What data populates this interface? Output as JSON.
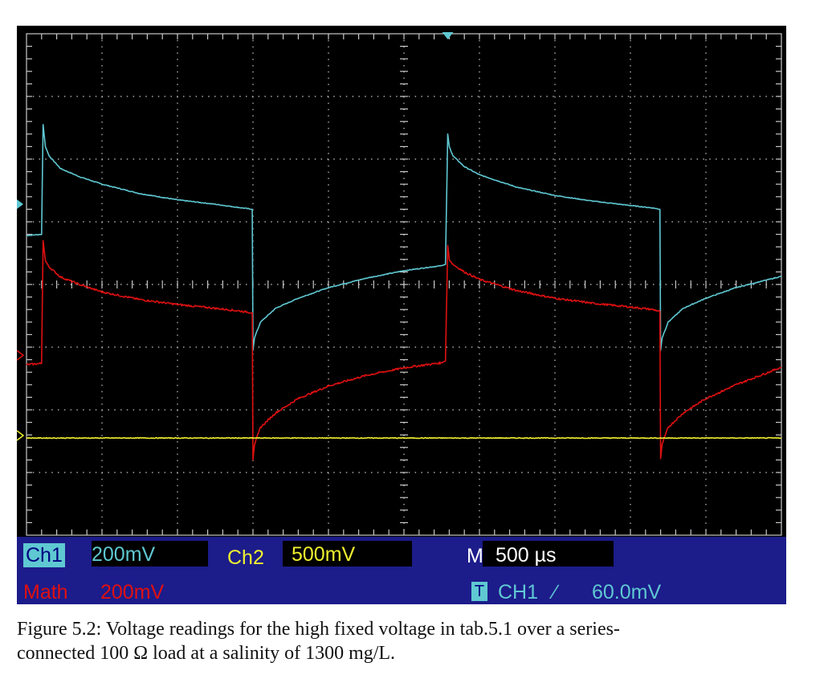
{
  "chart_data": {
    "type": "line",
    "x_divisions": 10,
    "y_divisions": 8,
    "x_unit": "div (500 µs/div)",
    "y_unit": "div",
    "series": [
      {
        "channel": "Ch1",
        "color": "#5fc8d2",
        "x": [
          0.0,
          0.2,
          0.22,
          0.25,
          0.3,
          0.45,
          0.7,
          1.0,
          1.5,
          2.0,
          2.5,
          2.8,
          2.99,
          3.0,
          3.02,
          3.1,
          3.3,
          3.6,
          4.0,
          4.5,
          5.0,
          5.3,
          5.5,
          5.55,
          5.58,
          5.6,
          5.65,
          5.8,
          6.0,
          6.5,
          7.0,
          7.5,
          8.0,
          8.3,
          8.39,
          8.4,
          8.42,
          8.5,
          8.7,
          9.0,
          9.4,
          10.0
        ],
        "y": [
          4.78,
          4.8,
          6.55,
          6.2,
          6.05,
          5.85,
          5.72,
          5.6,
          5.45,
          5.35,
          5.28,
          5.23,
          5.2,
          2.95,
          3.15,
          3.4,
          3.62,
          3.78,
          3.95,
          4.1,
          4.22,
          4.27,
          4.3,
          4.32,
          6.4,
          6.2,
          6.05,
          5.88,
          5.75,
          5.55,
          5.42,
          5.33,
          5.26,
          5.22,
          5.2,
          2.95,
          3.15,
          3.4,
          3.62,
          3.78,
          3.95,
          4.13
        ]
      },
      {
        "channel": "Math",
        "color": "#e01010",
        "x": [
          0.0,
          0.2,
          0.22,
          0.25,
          0.3,
          0.45,
          0.7,
          1.0,
          1.5,
          2.0,
          2.5,
          2.8,
          2.99,
          3.0,
          3.02,
          3.1,
          3.3,
          3.6,
          4.0,
          4.5,
          5.0,
          5.3,
          5.5,
          5.55,
          5.58,
          5.6,
          5.65,
          5.8,
          6.0,
          6.5,
          7.0,
          7.5,
          8.0,
          8.3,
          8.39,
          8.4,
          8.42,
          8.5,
          8.7,
          9.0,
          9.4,
          10.0
        ],
        "y": [
          2.72,
          2.74,
          4.7,
          4.38,
          4.28,
          4.12,
          4.0,
          3.88,
          3.76,
          3.68,
          3.62,
          3.58,
          3.55,
          1.2,
          1.45,
          1.72,
          1.95,
          2.18,
          2.38,
          2.55,
          2.67,
          2.72,
          2.75,
          2.78,
          4.62,
          4.4,
          4.32,
          4.2,
          4.08,
          3.9,
          3.78,
          3.7,
          3.64,
          3.6,
          3.57,
          1.22,
          1.45,
          1.72,
          1.95,
          2.18,
          2.4,
          2.68
        ]
      },
      {
        "channel": "Ch2",
        "color": "#f0f030",
        "x": [
          0,
          10
        ],
        "y": [
          1.55,
          1.55
        ]
      }
    ]
  },
  "colors": {
    "panel": "#1c1c8a",
    "ch1": "#5fc8d2",
    "ch2": "#f0f030",
    "math": "#e01010",
    "grid": "#c8c8c8",
    "trigger_marker": "#5fc8d2"
  },
  "readouts": {
    "ch1_tag": "Ch1",
    "ch1_scale": "200mV",
    "ch2_tag": "Ch2",
    "ch2_scale": "500mV",
    "timebase_tag": "M",
    "timebase": "500 µs",
    "math_tag": "Math",
    "math_scale": "200mV",
    "trigger_tag": "T",
    "trigger_source": "CH1",
    "trigger_slope_icon": "rising-edge-icon",
    "trigger_slope_glyph": "∕",
    "trigger_level": "60.0mV"
  },
  "caption": {
    "line1": "Figure 5.2: Voltage readings for the high fixed voltage in tab.5.1 over a series-",
    "line2": "connected 100 Ω load at a salinity of 1300 mg/L."
  }
}
